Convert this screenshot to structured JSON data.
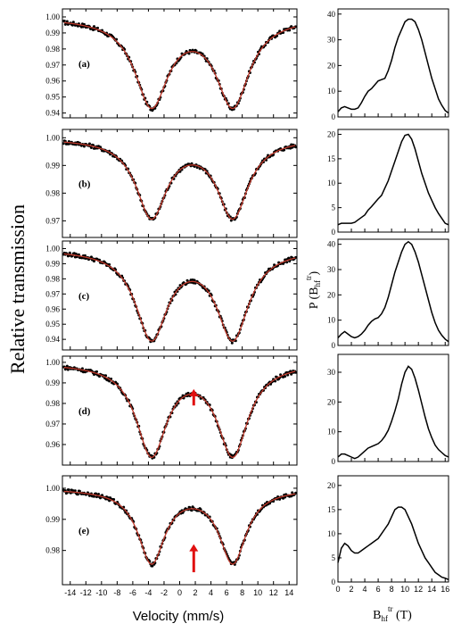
{
  "figure": {
    "ylabel_left": "Relative transmission",
    "xlabel_left": "Velocity (mm/s)",
    "ylabel_right": {
      "main": "P (B",
      "sub": "hf",
      "sup": "tr",
      "close": ")"
    },
    "xlabel_right": {
      "main": "B",
      "sub": "hf",
      "sup": "tr",
      "unit": " (T)"
    }
  },
  "chart_data": [
    {
      "type": "scatter",
      "panel_label": "(a)",
      "xlim": [
        -15,
        15
      ],
      "ylim": [
        0.937,
        1.005
      ],
      "xticks": [
        -14,
        -12,
        -10,
        -8,
        -6,
        -4,
        -2,
        0,
        2,
        4,
        6,
        8,
        10,
        12,
        14
      ],
      "xtick_labels": [
        "-14",
        "-12",
        "-10",
        "-8",
        "-6",
        "-4",
        "-2",
        "0",
        "2",
        "4",
        "6",
        "8",
        "10",
        "12",
        "14"
      ],
      "yticks": [
        0.94,
        0.95,
        0.96,
        0.97,
        0.98,
        0.99,
        1.0
      ],
      "ytick_labels": [
        "0.94",
        "0.95",
        "0.96",
        "0.97",
        "0.98",
        "0.99",
        "1.00"
      ],
      "profile": {
        "baseline": 1.0,
        "depth1": 0.054,
        "center1": -3.6,
        "depth2": 0.054,
        "center2": 6.8,
        "width": 2.6
      },
      "arrow": null,
      "data_color": "#000000",
      "fit_color": "#c0392b"
    },
    {
      "type": "scatter",
      "panel_label": "(b)",
      "xlim": [
        -15,
        15
      ],
      "ylim": [
        0.964,
        1.003
      ],
      "xticks": [
        -14,
        -12,
        -10,
        -8,
        -6,
        -4,
        -2,
        0,
        2,
        4,
        6,
        8,
        10,
        12,
        14
      ],
      "xtick_labels": [
        "-14",
        "-12",
        "-10",
        "-8",
        "-6",
        "-4",
        "-2",
        "0",
        "2",
        "4",
        "6",
        "8",
        "10",
        "12",
        "14"
      ],
      "yticks": [
        0.97,
        0.98,
        0.99,
        1.0
      ],
      "ytick_labels": [
        "0.97",
        "0.98",
        "0.99",
        "1.00"
      ],
      "profile": {
        "baseline": 1.0,
        "depth1": 0.028,
        "center1": -3.6,
        "depth2": 0.028,
        "center2": 6.8,
        "width": 2.4
      },
      "arrow": null,
      "data_color": "#000000",
      "fit_color": "#c0392b"
    },
    {
      "type": "scatter",
      "panel_label": "(c)",
      "xlim": [
        -15,
        15
      ],
      "ylim": [
        0.933,
        1.005
      ],
      "xticks": [
        -14,
        -12,
        -10,
        -8,
        -6,
        -4,
        -2,
        0,
        2,
        4,
        6,
        8,
        10,
        12,
        14
      ],
      "xtick_labels": [
        "-14",
        "-12",
        "-10",
        "-8",
        "-6",
        "-4",
        "-2",
        "0",
        "2",
        "4",
        "6",
        "8",
        "10",
        "12",
        "14"
      ],
      "yticks": [
        0.94,
        0.95,
        0.96,
        0.97,
        0.98,
        0.99,
        1.0
      ],
      "ytick_labels": [
        "0.94",
        "0.95",
        "0.96",
        "0.97",
        "0.98",
        "0.99",
        "1.00"
      ],
      "profile": {
        "baseline": 1.0,
        "depth1": 0.058,
        "center1": -3.6,
        "depth2": 0.058,
        "center2": 6.8,
        "width": 2.5
      },
      "arrow": null,
      "data_color": "#000000",
      "fit_color": "#c0392b"
    },
    {
      "type": "scatter",
      "panel_label": "(d)",
      "xlim": [
        -15,
        15
      ],
      "ylim": [
        0.95,
        1.003
      ],
      "xticks": [
        -14,
        -12,
        -10,
        -8,
        -6,
        -4,
        -2,
        0,
        2,
        4,
        6,
        8,
        10,
        12,
        14
      ],
      "xtick_labels": [
        "-14",
        "-12",
        "-10",
        "-8",
        "-6",
        "-4",
        "-2",
        "0",
        "2",
        "4",
        "6",
        "8",
        "10",
        "12",
        "14"
      ],
      "yticks": [
        0.96,
        0.97,
        0.98,
        0.99,
        1.0
      ],
      "ytick_labels": [
        "0.96",
        "0.97",
        "0.98",
        "0.99",
        "1.00"
      ],
      "profile": {
        "baseline": 1.0,
        "depth1": 0.044,
        "center1": -3.6,
        "depth2": 0.044,
        "center2": 6.8,
        "width": 2.4
      },
      "arrow": {
        "x": 1.8,
        "y_tip": 0.987,
        "y_tail": 0.979
      },
      "data_color": "#000000",
      "fit_color": "#c0392b"
    },
    {
      "type": "scatter",
      "panel_label": "(e)",
      "xlim": [
        -15,
        15
      ],
      "ylim": [
        0.969,
        1.004
      ],
      "xticks": [
        -14,
        -12,
        -10,
        -8,
        -6,
        -4,
        -2,
        0,
        2,
        4,
        6,
        8,
        10,
        12,
        14
      ],
      "xtick_labels": [
        "-14",
        "-12",
        "-10",
        "-8",
        "-6",
        "-4",
        "-2",
        "0",
        "2",
        "4",
        "6",
        "8",
        "10",
        "12",
        "14"
      ],
      "yticks": [
        0.98,
        0.99,
        1.0
      ],
      "ytick_labels": [
        "0.98",
        "0.99",
        "1.00"
      ],
      "profile": {
        "baseline": 1.0,
        "depth1": 0.0235,
        "center1": -3.6,
        "depth2": 0.0235,
        "center2": 6.8,
        "width": 2.1
      },
      "arrow": {
        "x": 1.8,
        "y_tip": 0.982,
        "y_tail": 0.973
      },
      "data_color": "#000000",
      "fit_color": "#c0392b"
    },
    {
      "type": "line",
      "panel": "P(Bhf) a",
      "xlim": [
        0,
        16.5
      ],
      "ylim": [
        0,
        42
      ],
      "yticks": [
        0,
        10,
        20,
        30,
        40
      ],
      "ytick_labels": [
        "0",
        "10",
        "20",
        "30",
        "40"
      ],
      "x": [
        0,
        0.5,
        1,
        1.5,
        2,
        2.5,
        3,
        3.5,
        4,
        4.5,
        5,
        5.5,
        6,
        6.5,
        7,
        7.5,
        8,
        8.5,
        9,
        9.5,
        10,
        10.5,
        11,
        11.5,
        12,
        12.5,
        13,
        13.5,
        14,
        14.5,
        15,
        15.5,
        16,
        16.5
      ],
      "y": [
        2,
        3.5,
        4,
        3.5,
        3,
        3,
        3.5,
        5.5,
        8,
        10,
        11,
        12.5,
        14,
        14.5,
        15,
        18,
        22,
        27,
        31,
        34,
        37,
        38,
        38,
        37,
        34,
        30,
        25,
        20,
        15,
        11,
        7,
        4.5,
        2.5,
        1.5
      ]
    },
    {
      "type": "line",
      "panel": "P(Bhf) b",
      "xlim": [
        0,
        16.5
      ],
      "ylim": [
        0,
        21
      ],
      "yticks": [
        0,
        5,
        10,
        15,
        20
      ],
      "ytick_labels": [
        "0",
        "5",
        "10",
        "15",
        "20"
      ],
      "x": [
        0,
        0.5,
        1,
        1.5,
        2,
        2.5,
        3,
        3.5,
        4,
        4.5,
        5,
        5.5,
        6,
        6.5,
        7,
        7.5,
        8,
        8.5,
        9,
        9.5,
        10,
        10.5,
        11,
        11.5,
        12,
        12.5,
        13,
        13.5,
        14,
        14.5,
        15,
        15.5,
        16,
        16.5
      ],
      "y": [
        1.5,
        1.8,
        1.8,
        1.8,
        1.8,
        2,
        2.5,
        3,
        3.5,
        4.5,
        5.2,
        6,
        6.8,
        7.5,
        9,
        10.5,
        12.5,
        14.5,
        16.5,
        18.5,
        19.8,
        20,
        19,
        17,
        14.5,
        12,
        10,
        8,
        6.5,
        5,
        3.8,
        2.8,
        1.8,
        1.5
      ]
    },
    {
      "type": "line",
      "panel": "P(Bhf) c",
      "xlim": [
        0,
        16.5
      ],
      "ylim": [
        0,
        42
      ],
      "yticks": [
        0,
        10,
        20,
        30,
        40
      ],
      "ytick_labels": [
        "0",
        "10",
        "20",
        "30",
        "40"
      ],
      "x": [
        0,
        0.5,
        1,
        1.5,
        2,
        2.5,
        3,
        3.5,
        4,
        4.5,
        5,
        5.5,
        6,
        6.5,
        7,
        7.5,
        8,
        8.5,
        9,
        9.5,
        10,
        10.5,
        11,
        11.5,
        12,
        12.5,
        13,
        13.5,
        14,
        14.5,
        15,
        15.5,
        16,
        16.5
      ],
      "y": [
        3,
        4.5,
        5.5,
        4.5,
        3.5,
        3,
        3.5,
        4.5,
        6,
        8,
        9.5,
        10.5,
        11,
        12.5,
        15,
        19,
        24,
        29,
        33,
        37,
        40,
        41,
        40,
        37,
        33,
        28,
        23,
        18,
        13,
        9,
        6,
        4,
        2.5,
        1.5
      ]
    },
    {
      "type": "line",
      "panel": "P(Bhf) d",
      "xlim": [
        0,
        16.5
      ],
      "ylim": [
        0,
        36
      ],
      "yticks": [
        0,
        10,
        20,
        30
      ],
      "ytick_labels": [
        "0",
        "10",
        "20",
        "30"
      ],
      "x": [
        0,
        0.5,
        1,
        1.5,
        2,
        2.5,
        3,
        3.5,
        4,
        4.5,
        5,
        5.5,
        6,
        6.5,
        7,
        7.5,
        8,
        8.5,
        9,
        9.5,
        10,
        10.5,
        11,
        11.5,
        12,
        12.5,
        13,
        13.5,
        14,
        14.5,
        15,
        15.5,
        16,
        16.5
      ],
      "y": [
        1.5,
        2.5,
        2.5,
        2,
        1.5,
        1,
        1.5,
        2.5,
        3.5,
        4.5,
        5,
        5.5,
        6,
        7,
        8.5,
        10.5,
        13.5,
        17,
        21,
        26,
        30,
        32,
        31,
        28,
        24,
        19.5,
        15,
        11,
        8,
        5.5,
        4,
        3,
        2,
        1.5
      ]
    },
    {
      "type": "line",
      "panel": "P(Bhf) e",
      "xlim": [
        0,
        16.5
      ],
      "ylim": [
        0,
        22
      ],
      "yticks": [
        0,
        5,
        10,
        15,
        20
      ],
      "ytick_labels": [
        "0",
        "5",
        "10",
        "15",
        "20"
      ],
      "xticks": [
        0,
        2,
        4,
        6,
        8,
        10,
        12,
        14,
        16
      ],
      "xtick_labels": [
        "0",
        "2",
        "4",
        "6",
        "8",
        "10",
        "12",
        "14",
        "16"
      ],
      "x": [
        0,
        0.5,
        1,
        1.5,
        2,
        2.5,
        3,
        3.5,
        4,
        4.5,
        5,
        5.5,
        6,
        6.5,
        7,
        7.5,
        8,
        8.5,
        9,
        9.5,
        10,
        10.5,
        11,
        11.5,
        12,
        12.5,
        13,
        13.5,
        14,
        14.5,
        15,
        15.5,
        16,
        16.5
      ],
      "y": [
        4,
        7,
        8,
        7.5,
        6.5,
        6,
        6,
        6.5,
        7,
        7.5,
        8,
        8.5,
        9,
        10,
        11,
        12,
        13.5,
        15,
        15.5,
        15.5,
        15,
        13.5,
        12,
        10,
        8,
        6.5,
        5,
        4,
        3,
        2,
        1.5,
        1,
        0.8,
        0.5
      ]
    }
  ]
}
